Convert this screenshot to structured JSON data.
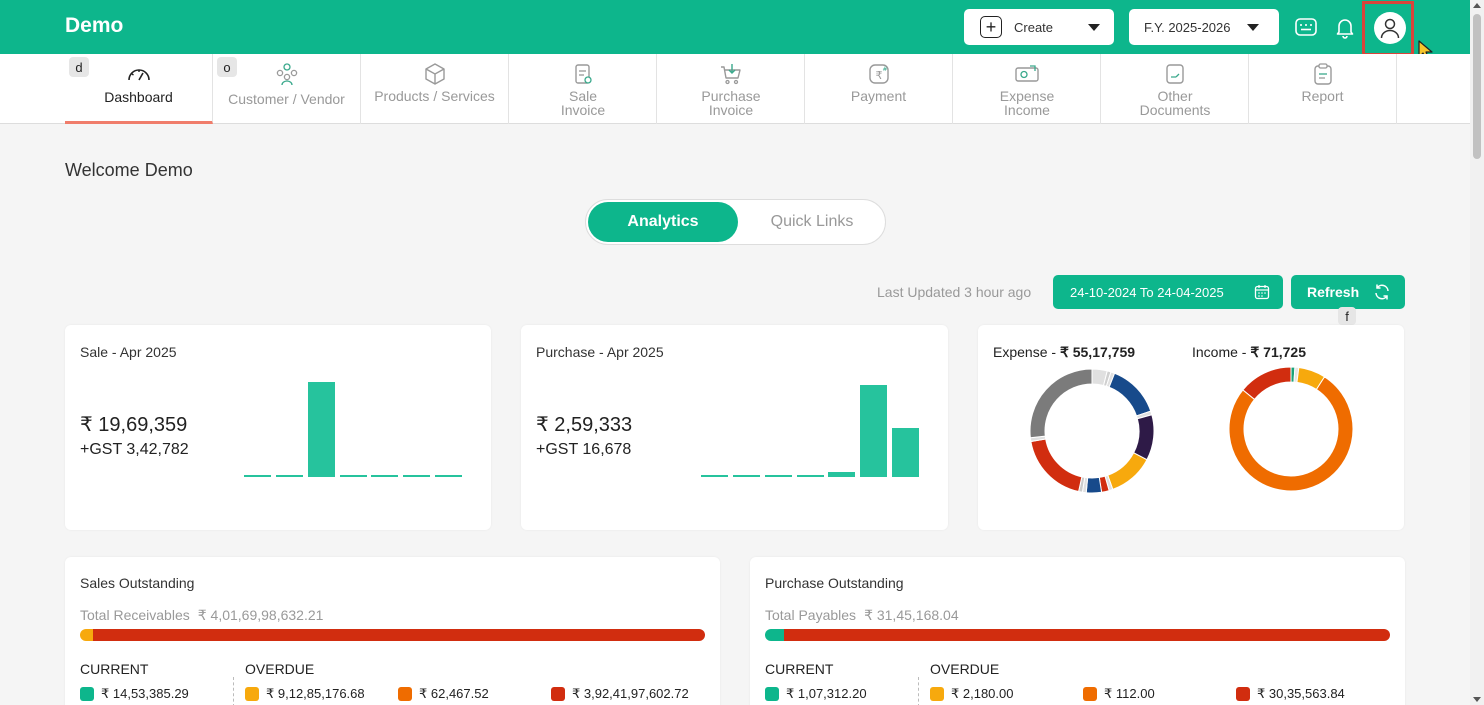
{
  "app": {
    "brand": "Demo"
  },
  "header": {
    "create_label": "Create",
    "fy_label": "F.Y. 2025-2026"
  },
  "nav": {
    "items": [
      {
        "label": "Dashboard",
        "key": "d",
        "icon": "speedometer-icon"
      },
      {
        "label": "Customer / Vendor",
        "key": "o",
        "icon": "users-icon"
      },
      {
        "label": "Products / Services",
        "icon": "box-icon"
      },
      {
        "label": "Sale Invoice",
        "icon": "invoice-icon"
      },
      {
        "label": "Purchase Invoice",
        "icon": "cart-icon"
      },
      {
        "label": "Payment",
        "icon": "rupee-icon"
      },
      {
        "label": "Expense Income",
        "icon": "cash-icon"
      },
      {
        "label": "Other Documents",
        "icon": "document-icon"
      },
      {
        "label": "Report",
        "icon": "clipboard-icon"
      }
    ]
  },
  "welcome": "Welcome Demo",
  "tabs": {
    "analytics": "Analytics",
    "quick_links": "Quick Links"
  },
  "toolbar": {
    "last_updated": "Last Updated 3 hour ago",
    "date_range": "24-10-2024 To 24-04-2025",
    "refresh": "Refresh",
    "refresh_key": "f"
  },
  "sale_card": {
    "title": "Sale - Apr 2025",
    "amount": "₹ 19,69,359",
    "gst": "+GST 3,42,782"
  },
  "purchase_card": {
    "title": "Purchase - Apr 2025",
    "amount": "₹ 2,59,333",
    "gst": "+GST 16,678"
  },
  "expense_income": {
    "expense_label": "Expense - ",
    "expense_amount": "₹ 55,17,759",
    "income_label": "Income - ",
    "income_amount": "₹ 71,725"
  },
  "chart_data": [
    {
      "type": "bar",
      "series": [
        {
          "values": [
            0.02,
            0.02,
            1.0,
            0.02,
            0.02,
            0.01,
            0.02
          ]
        }
      ],
      "colors": [
        "#26c39d"
      ]
    },
    {
      "type": "bar",
      "series": [
        {
          "values": [
            0.02,
            0.02,
            0.02,
            0.02,
            0.05,
            0.97,
            0.52
          ]
        }
      ],
      "colors": [
        "#26c39d"
      ]
    },
    {
      "type": "pie",
      "values": [
        4,
        1,
        1,
        14,
        1,
        12,
        12,
        1,
        2,
        4,
        1,
        1,
        19,
        1,
        27
      ],
      "colors": [
        "#e0e0e0",
        "#d0d0d0",
        "#e0e0e0",
        "#174a8b",
        "#e0e0e0",
        "#2e1a47",
        "#f7a90d",
        "#e0e0e0",
        "#d12d0f",
        "#174a8b",
        "#e0e0e0",
        "#cccccc",
        "#d12d0f",
        "#e0e0e0",
        "#7b7b7b"
      ]
    },
    {
      "type": "pie",
      "values": [
        1,
        1,
        7,
        76,
        14
      ],
      "colors": [
        "#1aa37a",
        "#e6e6e6",
        "#f7a90d",
        "#ef6c00",
        "#d12d0f"
      ]
    }
  ],
  "sales_outstanding": {
    "title": "Sales Outstanding",
    "total_label": "Total Receivables",
    "total_amount": "₹ 4,01,69,98,632.21",
    "bar": [
      {
        "pct": 2,
        "color": "#f7a90d"
      },
      {
        "pct": 98,
        "color": "#d12d0f"
      }
    ],
    "current_label": "CURRENT",
    "overdue_label": "OVERDUE",
    "current_value": "₹ 14,53,385.29",
    "overdue_values": [
      "₹ 9,12,85,176.68",
      "₹ 62,467.52",
      "₹ 3,92,41,97,602.72"
    ]
  },
  "purchase_outstanding": {
    "title": "Purchase Outstanding",
    "total_label": "Total Payables",
    "total_amount": "₹ 31,45,168.04",
    "bar": [
      {
        "pct": 3,
        "color": "#0db68c"
      },
      {
        "pct": 97,
        "color": "#d12d0f"
      }
    ],
    "current_label": "CURRENT",
    "overdue_label": "OVERDUE",
    "current_value": "₹ 1,07,312.20",
    "overdue_values": [
      "₹ 2,180.00",
      "₹ 112.00",
      "₹ 30,35,563.84"
    ]
  },
  "legend_colors": {
    "current": "#0db68c",
    "overdue_1": "#f7a90d",
    "overdue_2": "#ef6c00",
    "overdue_3": "#d12d0f"
  }
}
